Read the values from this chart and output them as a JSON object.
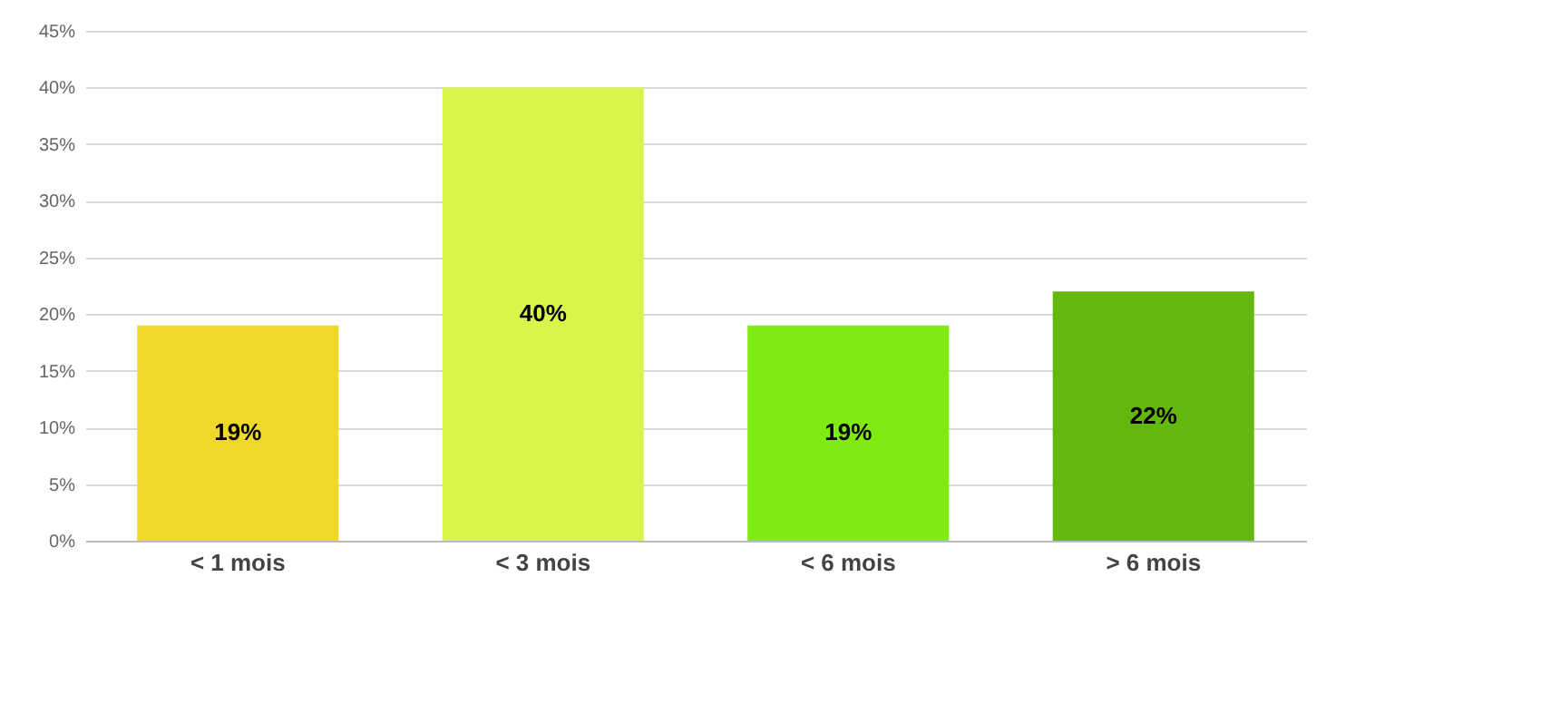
{
  "chart_data": {
    "type": "bar",
    "categories": [
      "< 1 mois",
      "< 3 mois",
      "< 6 mois",
      "> 6 mois"
    ],
    "values": [
      19,
      40,
      19,
      22
    ],
    "colors": [
      "#f0d829",
      "#d9f54c",
      "#7feb12",
      "#64b80d"
    ],
    "value_labels": [
      "19%",
      "40%",
      "19%",
      "22%"
    ],
    "ylim": [
      0,
      45
    ],
    "yticks": [
      {
        "value": 0,
        "label": "0%"
      },
      {
        "value": 5,
        "label": "5%"
      },
      {
        "value": 10,
        "label": "10%"
      },
      {
        "value": 15,
        "label": "15%"
      },
      {
        "value": 20,
        "label": "20%"
      },
      {
        "value": 25,
        "label": "25%"
      },
      {
        "value": 30,
        "label": "30%"
      },
      {
        "value": 35,
        "label": "35%"
      },
      {
        "value": 40,
        "label": "40%"
      },
      {
        "value": 45,
        "label": "45%"
      }
    ],
    "grid": "y"
  }
}
